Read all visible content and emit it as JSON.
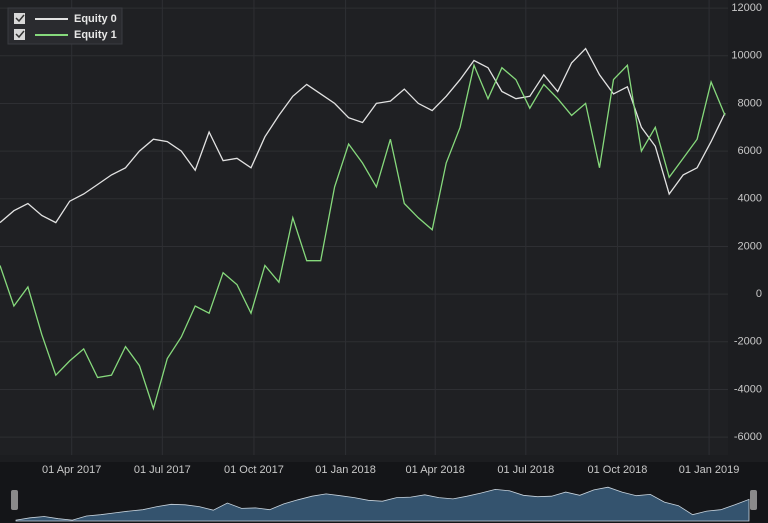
{
  "chart_data": {
    "type": "line",
    "x": [
      "2017-01-19",
      "2017-02-02",
      "2017-02-16",
      "2017-03-02",
      "2017-03-16",
      "2017-03-30",
      "2017-04-13",
      "2017-04-27",
      "2017-05-11",
      "2017-05-25",
      "2017-06-08",
      "2017-06-22",
      "2017-07-06",
      "2017-07-20",
      "2017-08-03",
      "2017-08-17",
      "2017-08-31",
      "2017-09-14",
      "2017-09-28",
      "2017-10-12",
      "2017-10-26",
      "2017-11-09",
      "2017-11-23",
      "2017-12-07",
      "2017-12-21",
      "2018-01-04",
      "2018-01-18",
      "2018-02-01",
      "2018-02-15",
      "2018-03-01",
      "2018-03-15",
      "2018-03-29",
      "2018-04-12",
      "2018-04-26",
      "2018-05-10",
      "2018-05-24",
      "2018-06-07",
      "2018-06-21",
      "2018-07-05",
      "2018-07-19",
      "2018-08-02",
      "2018-08-16",
      "2018-08-30",
      "2018-09-13",
      "2018-09-27",
      "2018-10-11",
      "2018-10-25",
      "2018-11-08",
      "2018-11-22",
      "2018-12-06",
      "2018-12-20",
      "2019-01-03",
      "2019-01-17"
    ],
    "series": [
      {
        "name": "Equity 0",
        "color": "#e2e2e2",
        "values": [
          3000,
          3500,
          3800,
          3300,
          3000,
          3900,
          4200,
          4600,
          5000,
          5300,
          6000,
          6500,
          6400,
          6000,
          5200,
          6800,
          5600,
          5700,
          5300,
          6600,
          7500,
          8300,
          8800,
          8400,
          8000,
          7400,
          7200,
          8000,
          8100,
          8600,
          8000,
          7700,
          8300,
          9000,
          9800,
          9500,
          8500,
          8200,
          8300,
          9200,
          8500,
          9700,
          10300,
          9200,
          8400,
          8700,
          7000,
          6200,
          4200,
          5000,
          5300,
          6400,
          7600
        ]
      },
      {
        "name": "Equity 1",
        "color": "#86d97c",
        "values": [
          1200,
          -500,
          300,
          -1700,
          -3400,
          -2800,
          -2300,
          -3500,
          -3400,
          -2200,
          -3000,
          -4800,
          -2700,
          -1800,
          -500,
          -800,
          900,
          400,
          -800,
          1200,
          500,
          3200,
          1400,
          1400,
          4500,
          6300,
          5500,
          4500,
          6500,
          3800,
          3200,
          2700,
          5500,
          7000,
          9600,
          8200,
          9500,
          9000,
          7800,
          8800,
          8200,
          7500,
          8000,
          5300,
          9000,
          9600,
          6000,
          7000,
          4900,
          5700,
          6500,
          8900,
          7500
        ]
      }
    ],
    "xlim": [
      "2017-01-19",
      "2019-01-20"
    ],
    "xticks": [
      {
        "value": "2017-04-01",
        "label": "01 Apr 2017"
      },
      {
        "value": "2017-07-01",
        "label": "01 Jul 2017"
      },
      {
        "value": "2017-10-01",
        "label": "01 Oct 2017"
      },
      {
        "value": "2018-01-01",
        "label": "01 Jan 2018"
      },
      {
        "value": "2018-04-01",
        "label": "01 Apr 2018"
      },
      {
        "value": "2018-07-01",
        "label": "01 Jul 2018"
      },
      {
        "value": "2018-10-01",
        "label": "01 Oct 2018"
      },
      {
        "value": "2019-01-01",
        "label": "01 Jan 2019"
      }
    ],
    "ylim": [
      -6750,
      12340
    ],
    "yticks": [
      -6000,
      -4000,
      -2000,
      0,
      2000,
      4000,
      6000,
      8000,
      10000,
      12000
    ],
    "grid": true
  }
}
